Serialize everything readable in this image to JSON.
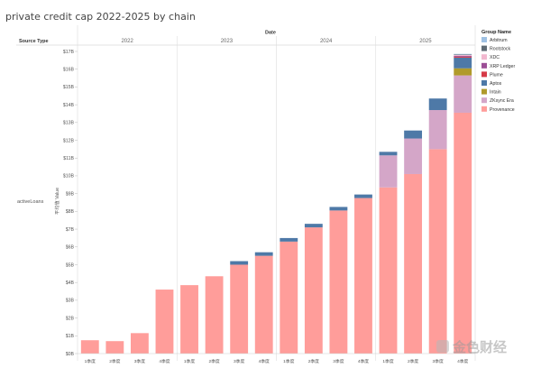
{
  "chart_data": {
    "type": "bar",
    "stacked": true,
    "title": "private credit cap 2022-2025 by chain",
    "column_header": "Date",
    "row_header": "Source Type",
    "row_label": "activeLoans",
    "ylabel": "平均值 Value",
    "years": [
      "2022",
      "2023",
      "2024",
      "2025"
    ],
    "categories": [
      "1季度",
      "2季度",
      "3季度",
      "4季度",
      "1季度",
      "2季度",
      "3季度",
      "4季度",
      "1季度",
      "2季度",
      "3季度",
      "4季度",
      "1季度",
      "2季度",
      "3季度",
      "4季度"
    ],
    "year_of_category": [
      0,
      0,
      0,
      0,
      1,
      1,
      1,
      1,
      2,
      2,
      2,
      2,
      3,
      3,
      3,
      3
    ],
    "ylim": [
      0,
      17
    ],
    "yticks": [
      0,
      1,
      2,
      3,
      4,
      5,
      6,
      7,
      8,
      9,
      10,
      11,
      12,
      13,
      14,
      15,
      16,
      17
    ],
    "ytick_labels": [
      "$0B",
      "$1B",
      "$2B",
      "$3B",
      "$4B",
      "$5B",
      "$6B",
      "$7B",
      "$8B",
      "$9B",
      "$10B",
      "$11B",
      "$12B",
      "$13B",
      "$14B",
      "$15B",
      "$16B",
      "$17B"
    ],
    "legend_title": "Group Name",
    "legend_position": "right",
    "series": [
      {
        "name": "Arbitrum",
        "color": "#9fc1e3",
        "values": [
          0,
          0,
          0,
          0,
          0,
          0,
          0,
          0,
          0,
          0,
          0,
          0,
          0,
          0,
          0,
          0.03
        ]
      },
      {
        "name": "Rootstock",
        "color": "#5f6b74",
        "values": [
          0,
          0,
          0,
          0,
          0,
          0,
          0,
          0,
          0,
          0,
          0,
          0,
          0,
          0,
          0,
          0.03
        ]
      },
      {
        "name": "XDC",
        "color": "#f2b8cf",
        "values": [
          0,
          0,
          0,
          0,
          0,
          0,
          0,
          0,
          0,
          0,
          0,
          0,
          0,
          0,
          0,
          0.05
        ]
      },
      {
        "name": "XRP Ledger",
        "color": "#9c4f96",
        "values": [
          0,
          0,
          0,
          0,
          0,
          0,
          0,
          0,
          0,
          0,
          0,
          0,
          0,
          0,
          0,
          0.05
        ]
      },
      {
        "name": "Plume",
        "color": "#d63a47",
        "values": [
          0,
          0,
          0,
          0,
          0,
          0,
          0,
          0,
          0,
          0,
          0,
          0,
          0,
          0,
          0,
          0.05
        ]
      },
      {
        "name": "Aptos",
        "color": "#4e79a7",
        "values": [
          0,
          0,
          0,
          0,
          0,
          0,
          0.2,
          0.2,
          0.2,
          0.2,
          0.2,
          0.2,
          0.2,
          0.45,
          0.65,
          0.6
        ]
      },
      {
        "name": "Intain",
        "color": "#b09a2b",
        "values": [
          0,
          0,
          0,
          0,
          0,
          0,
          0,
          0,
          0,
          0,
          0,
          0,
          0,
          0,
          0,
          0.4
        ]
      },
      {
        "name": "ZKsync Era",
        "color": "#d4a6c8",
        "values": [
          0,
          0,
          0,
          0,
          0,
          0,
          0,
          0,
          0,
          0,
          0,
          0,
          1.8,
          2.0,
          2.2,
          2.1
        ]
      },
      {
        "name": "Provenance",
        "color": "#ff9d9a",
        "values": [
          0.75,
          0.7,
          1.15,
          3.6,
          3.85,
          4.35,
          5.0,
          5.5,
          6.3,
          7.1,
          8.05,
          8.75,
          9.35,
          10.1,
          11.5,
          13.55
        ]
      }
    ]
  },
  "watermark": {
    "text": "金色财经"
  }
}
